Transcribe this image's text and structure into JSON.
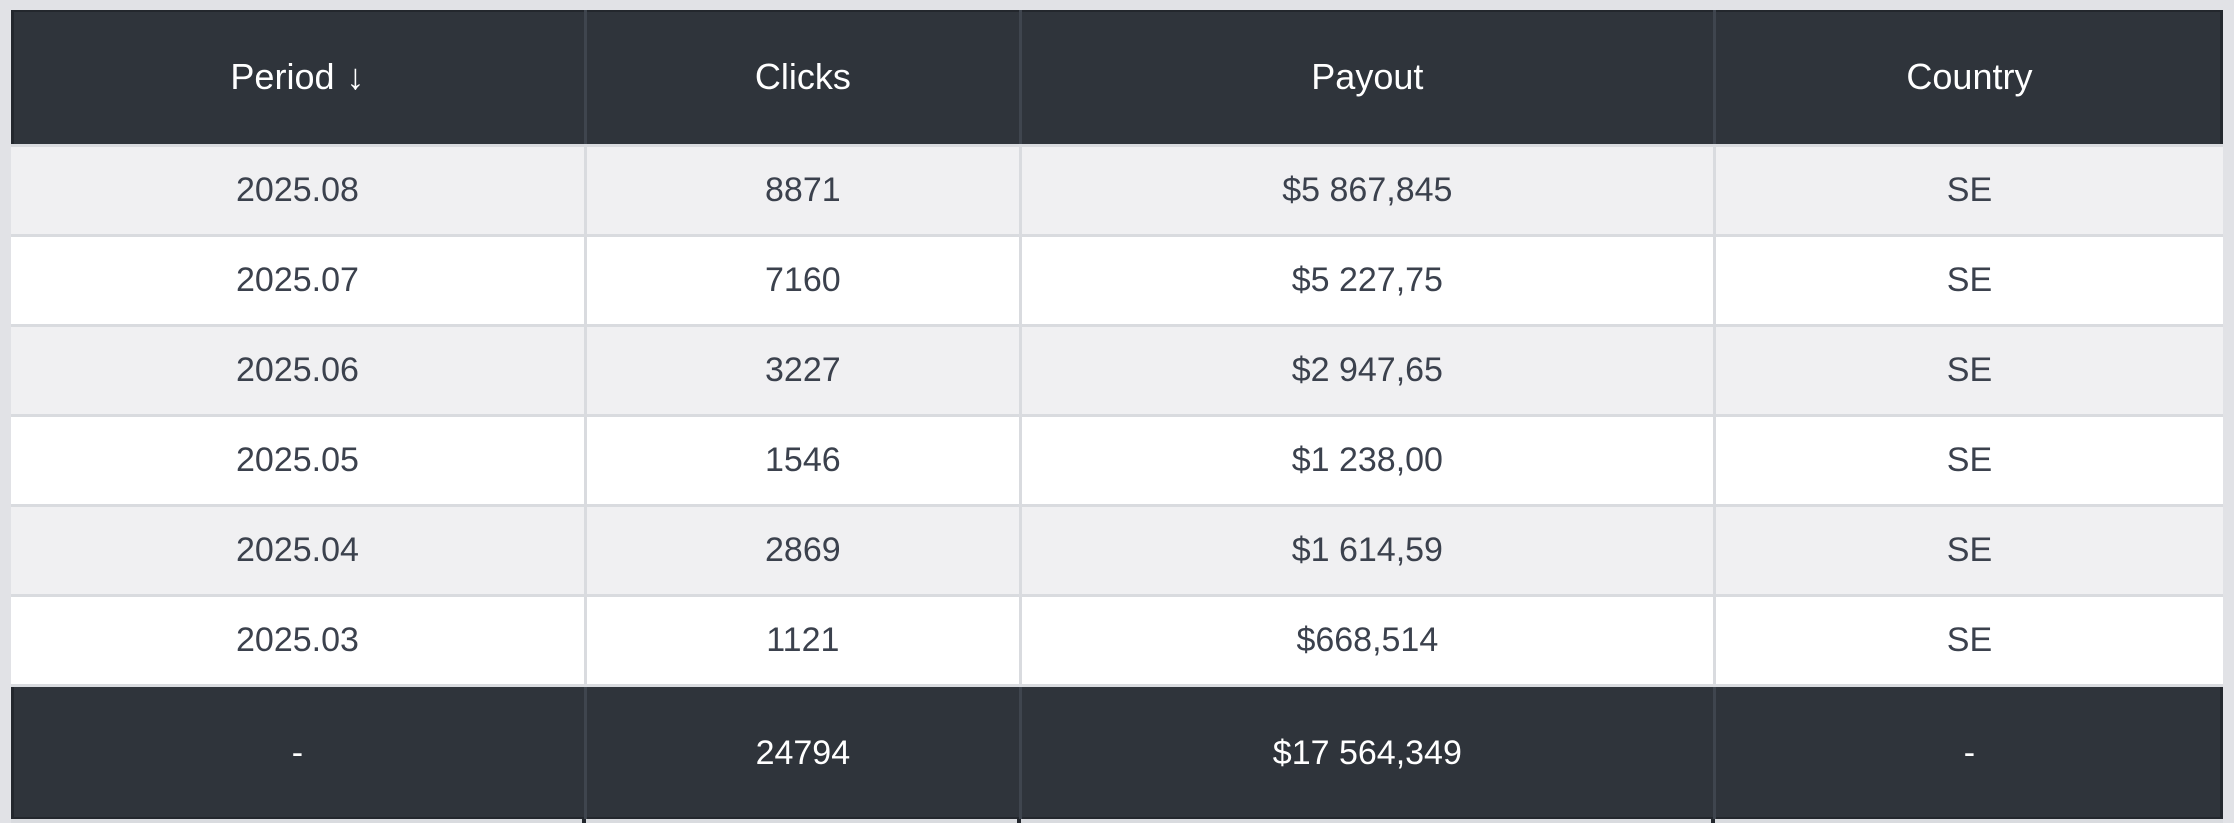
{
  "colors": {
    "page_bg": "#e1e2e6",
    "dark_bg": "#2f343b",
    "dark_border": "#23272d",
    "dark_separator": "#3f454e",
    "light_row_bg": "#f0f0f2",
    "white_row_bg": "#ffffff",
    "body_border": "#d9dbdf",
    "body_text": "#3b414d",
    "header_text": "#ffffff"
  },
  "table": {
    "columns": [
      {
        "label": "Period",
        "sort_indicator": "↓"
      },
      {
        "label": "Clicks"
      },
      {
        "label": "Payout"
      },
      {
        "label": "Country"
      }
    ],
    "rows": [
      {
        "period": "2025.08",
        "clicks": "8871",
        "payout": "$5 867,845",
        "country": "SE"
      },
      {
        "period": "2025.07",
        "clicks": "7160",
        "payout": "$5 227,75",
        "country": "SE"
      },
      {
        "period": "2025.06",
        "clicks": "3227",
        "payout": "$2 947,65",
        "country": "SE"
      },
      {
        "period": "2025.05",
        "clicks": "1546",
        "payout": "$1 238,00",
        "country": "SE"
      },
      {
        "period": "2025.04",
        "clicks": "2869",
        "payout": "$1 614,59",
        "country": "SE"
      },
      {
        "period": "2025.03",
        "clicks": "1121",
        "payout": "$668,514",
        "country": "SE"
      }
    ],
    "totals": {
      "period": "-",
      "clicks": "24794",
      "payout": "$17 564,349",
      "country": "-"
    }
  }
}
